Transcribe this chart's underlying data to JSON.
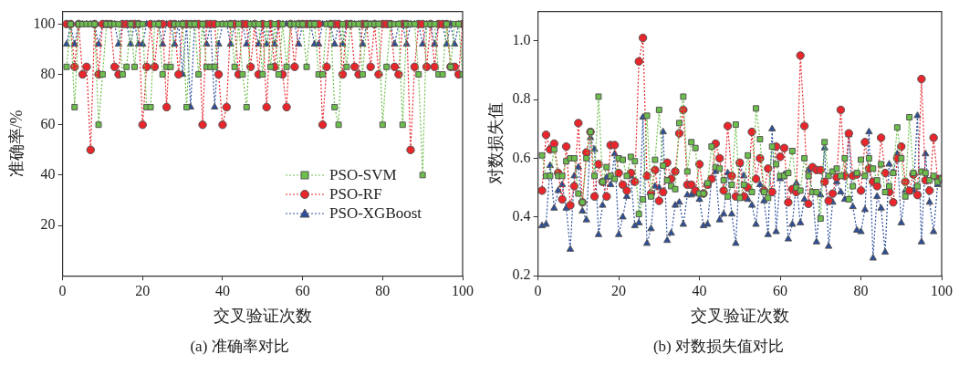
{
  "chart_data": [
    {
      "type": "line",
      "xlabel": "交叉验证次数",
      "ylabel": "准确率/%",
      "annotations": [
        "(a) 准确率对比"
      ],
      "xlim": [
        0,
        100
      ],
      "xticks": [
        0,
        20,
        40,
        60,
        80,
        100
      ],
      "ylim": [
        0,
        105
      ],
      "yticks": [
        20,
        40,
        60,
        80,
        100
      ],
      "grid": false,
      "legend": "bottom right",
      "line_style": "dotted",
      "x": [
        1,
        2,
        3,
        4,
        5,
        6,
        7,
        8,
        9,
        10,
        11,
        12,
        13,
        14,
        15,
        16,
        17,
        18,
        19,
        20,
        21,
        22,
        23,
        24,
        25,
        26,
        27,
        28,
        29,
        30,
        31,
        32,
        33,
        34,
        35,
        36,
        37,
        38,
        39,
        40,
        41,
        42,
        43,
        44,
        45,
        46,
        47,
        48,
        49,
        50,
        51,
        52,
        53,
        54,
        55,
        56,
        57,
        58,
        59,
        60,
        61,
        62,
        63,
        64,
        65,
        66,
        67,
        68,
        69,
        70,
        71,
        72,
        73,
        74,
        75,
        76,
        77,
        78,
        79,
        80,
        81,
        82,
        83,
        84,
        85,
        86,
        87,
        88,
        89,
        90,
        91,
        92,
        93,
        94,
        95,
        96,
        97,
        98,
        99,
        100
      ],
      "series": [
        {
          "name": "PSO-SVM",
          "color": "#6cbf4a",
          "marker": "square",
          "values": [
            83,
            100,
            67,
            100,
            100,
            100,
            100,
            100,
            60,
            80,
            100,
            100,
            100,
            100,
            80,
            83,
            100,
            83,
            100,
            100,
            67,
            67,
            100,
            100,
            80,
            83,
            83,
            100,
            100,
            100,
            67,
            100,
            100,
            80,
            100,
            83,
            83,
            83,
            100,
            100,
            100,
            100,
            83,
            100,
            80,
            67,
            100,
            100,
            100,
            80,
            100,
            83,
            100,
            80,
            100,
            83,
            100,
            100,
            100,
            100,
            83,
            100,
            100,
            80,
            80,
            100,
            100,
            67,
            60,
            100,
            83,
            100,
            100,
            100,
            80,
            100,
            100,
            100,
            100,
            60,
            83,
            100,
            100,
            100,
            60,
            100,
            100,
            100,
            80,
            40,
            100,
            100,
            100,
            80,
            80,
            100,
            83,
            100,
            100,
            80
          ]
        },
        {
          "name": "PSO-RF",
          "color": "#e8262b",
          "marker": "circle",
          "values": [
            100,
            100,
            83,
            100,
            80,
            83,
            50,
            100,
            80,
            100,
            100,
            100,
            83,
            80,
            100,
            100,
            100,
            100,
            100,
            60,
            83,
            100,
            83,
            100,
            100,
            67,
            100,
            100,
            80,
            100,
            100,
            100,
            100,
            100,
            60,
            100,
            100,
            100,
            80,
            60,
            67,
            100,
            100,
            80,
            100,
            100,
            83,
            100,
            80,
            100,
            67,
            100,
            83,
            100,
            80,
            67,
            100,
            83,
            100,
            100,
            100,
            100,
            100,
            100,
            60,
            83,
            100,
            100,
            100,
            80,
            100,
            100,
            83,
            80,
            100,
            100,
            83,
            100,
            80,
            100,
            100,
            100,
            83,
            80,
            100,
            100,
            50,
            83,
            100,
            100,
            83,
            100,
            83,
            100,
            100,
            100,
            83,
            83,
            80,
            100
          ]
        },
        {
          "name": "PSO-XGBoost",
          "color": "#2b4f9e",
          "marker": "triangle",
          "values": [
            92,
            100,
            92,
            100,
            100,
            100,
            100,
            100,
            92,
            100,
            100,
            100,
            100,
            92,
            100,
            100,
            92,
            100,
            92,
            92,
            100,
            100,
            100,
            100,
            92,
            100,
            100,
            92,
            100,
            80,
            100,
            67,
            100,
            100,
            100,
            92,
            100,
            67,
            92,
            100,
            100,
            92,
            100,
            100,
            100,
            92,
            100,
            100,
            92,
            100,
            92,
            100,
            92,
            100,
            100,
            100,
            100,
            100,
            92,
            100,
            100,
            100,
            92,
            92,
            100,
            100,
            100,
            92,
            100,
            92,
            100,
            100,
            100,
            100,
            92,
            100,
            100,
            100,
            100,
            100,
            100,
            100,
            92,
            100,
            100,
            92,
            100,
            100,
            100,
            92,
            100,
            100,
            92,
            100,
            100,
            92,
            100,
            92,
            100,
            100
          ]
        }
      ]
    },
    {
      "type": "line",
      "xlabel": "交叉验证次数",
      "ylabel": "对数损失值",
      "annotations": [
        "(b) 对数损失值对比"
      ],
      "xlim": [
        0,
        100
      ],
      "xticks": [
        0,
        20,
        40,
        60,
        80,
        100
      ],
      "ylim": [
        0.2,
        1.1
      ],
      "yticks": [
        0.2,
        0.4,
        0.6,
        0.8,
        {
          "value": 1,
          "label": "1.0"
        }
      ],
      "grid": false,
      "legend": false,
      "line_style": "dotted",
      "x": [
        1,
        2,
        3,
        4,
        5,
        6,
        7,
        8,
        9,
        10,
        11,
        12,
        13,
        14,
        15,
        16,
        17,
        18,
        19,
        20,
        21,
        22,
        23,
        24,
        25,
        26,
        27,
        28,
        29,
        30,
        31,
        32,
        33,
        34,
        35,
        36,
        37,
        38,
        39,
        40,
        41,
        42,
        43,
        44,
        45,
        46,
        47,
        48,
        49,
        50,
        51,
        52,
        53,
        54,
        55,
        56,
        57,
        58,
        59,
        60,
        61,
        62,
        63,
        64,
        65,
        66,
        67,
        68,
        69,
        70,
        71,
        72,
        73,
        74,
        75,
        76,
        77,
        78,
        79,
        80,
        81,
        82,
        83,
        84,
        85,
        86,
        87,
        88,
        89,
        90,
        91,
        92,
        93,
        94,
        95,
        96,
        97,
        98,
        99,
        100
      ],
      "series": [
        {
          "color": "#6cbf4a",
          "marker": "square",
          "values": [
            0.61,
            0.54,
            0.54,
            0.63,
            0.54,
            0.54,
            0.59,
            0.6,
            0.6,
            0.48,
            0.45,
            0.6,
            0.69,
            0.54,
            0.81,
            0.52,
            0.57,
            0.54,
            0.53,
            0.6,
            0.595,
            0.54,
            0.605,
            0.59,
            0.41,
            0.46,
            0.745,
            0.47,
            0.595,
            0.765,
            0.575,
            0.525,
            0.505,
            0.495,
            0.72,
            0.81,
            0.555,
            0.655,
            0.635,
            0.48,
            0.48,
            0.515,
            0.64,
            0.57,
            0.565,
            0.525,
            0.47,
            0.51,
            0.715,
            0.465,
            0.51,
            0.61,
            0.485,
            0.77,
            0.665,
            0.485,
            0.465,
            0.64,
            0.58,
            0.54,
            0.54,
            0.55,
            0.625,
            0.5,
            0.49,
            0.6,
            0.54,
            0.485,
            0.485,
            0.395,
            0.655,
            0.54,
            0.555,
            0.565,
            0.54,
            0.6,
            0.46,
            0.505,
            0.55,
            0.595,
            0.54,
            0.6,
            0.565,
            0.525,
            0.58,
            0.485,
            0.505,
            0.55,
            0.705,
            0.6,
            0.47,
            0.74,
            0.55,
            0.505,
            0.555,
            0.55,
            0.525,
            0.54,
            0.52,
            0.53
          ]
        },
        {
          "color": "#e8262b",
          "marker": "circle",
          "values": [
            0.49,
            0.68,
            0.63,
            0.65,
            0.55,
            0.46,
            0.64,
            0.44,
            0.505,
            0.72,
            0.45,
            0.62,
            0.69,
            0.47,
            0.58,
            0.52,
            0.47,
            0.645,
            0.645,
            0.55,
            0.51,
            0.49,
            0.55,
            0.52,
            0.93,
            1.01,
            0.54,
            0.48,
            0.56,
            0.455,
            0.485,
            0.585,
            0.53,
            0.555,
            0.685,
            0.765,
            0.51,
            0.51,
            0.49,
            0.58,
            0.48,
            0.51,
            0.53,
            0.65,
            0.6,
            0.49,
            0.71,
            0.54,
            0.47,
            0.585,
            0.47,
            0.5,
            0.69,
            0.53,
            0.6,
            0.49,
            0.565,
            0.485,
            0.64,
            0.605,
            0.635,
            0.45,
            0.495,
            0.485,
            0.95,
            0.71,
            0.445,
            0.57,
            0.56,
            0.56,
            0.52,
            0.455,
            0.48,
            0.535,
            0.765,
            0.54,
            0.685,
            0.54,
            0.545,
            0.49,
            0.655,
            0.565,
            0.52,
            0.505,
            0.67,
            0.55,
            0.485,
            0.45,
            0.6,
            0.64,
            0.52,
            0.49,
            0.545,
            0.475,
            0.87,
            0.525,
            0.49,
            0.67,
            0.53,
            0.53
          ]
        },
        {
          "color": "#2b4f9e",
          "marker": "triangle",
          "values": [
            0.37,
            0.375,
            0.575,
            0.43,
            0.49,
            0.51,
            0.43,
            0.29,
            0.54,
            0.57,
            0.42,
            0.39,
            0.67,
            0.63,
            0.34,
            0.44,
            0.535,
            0.51,
            0.615,
            0.34,
            0.4,
            0.47,
            0.54,
            0.37,
            0.38,
            0.74,
            0.31,
            0.36,
            0.505,
            0.5,
            0.69,
            0.32,
            0.345,
            0.44,
            0.45,
            0.375,
            0.475,
            0.475,
            0.48,
            0.46,
            0.37,
            0.375,
            0.53,
            0.555,
            0.39,
            0.41,
            0.55,
            0.41,
            0.31,
            0.58,
            0.54,
            0.46,
            0.44,
            0.375,
            0.51,
            0.455,
            0.34,
            0.7,
            0.35,
            0.53,
            0.545,
            0.325,
            0.375,
            0.515,
            0.38,
            0.46,
            0.56,
            0.485,
            0.315,
            0.475,
            0.635,
            0.3,
            0.45,
            0.52,
            0.485,
            0.46,
            0.68,
            0.435,
            0.355,
            0.35,
            0.425,
            0.69,
            0.26,
            0.47,
            0.43,
            0.28,
            0.58,
            0.55,
            0.615,
            0.38,
            0.49,
            0.485,
            0.49,
            0.745,
            0.315,
            0.615,
            0.45,
            0.35,
            0.51,
            0.53
          ]
        }
      ]
    }
  ]
}
